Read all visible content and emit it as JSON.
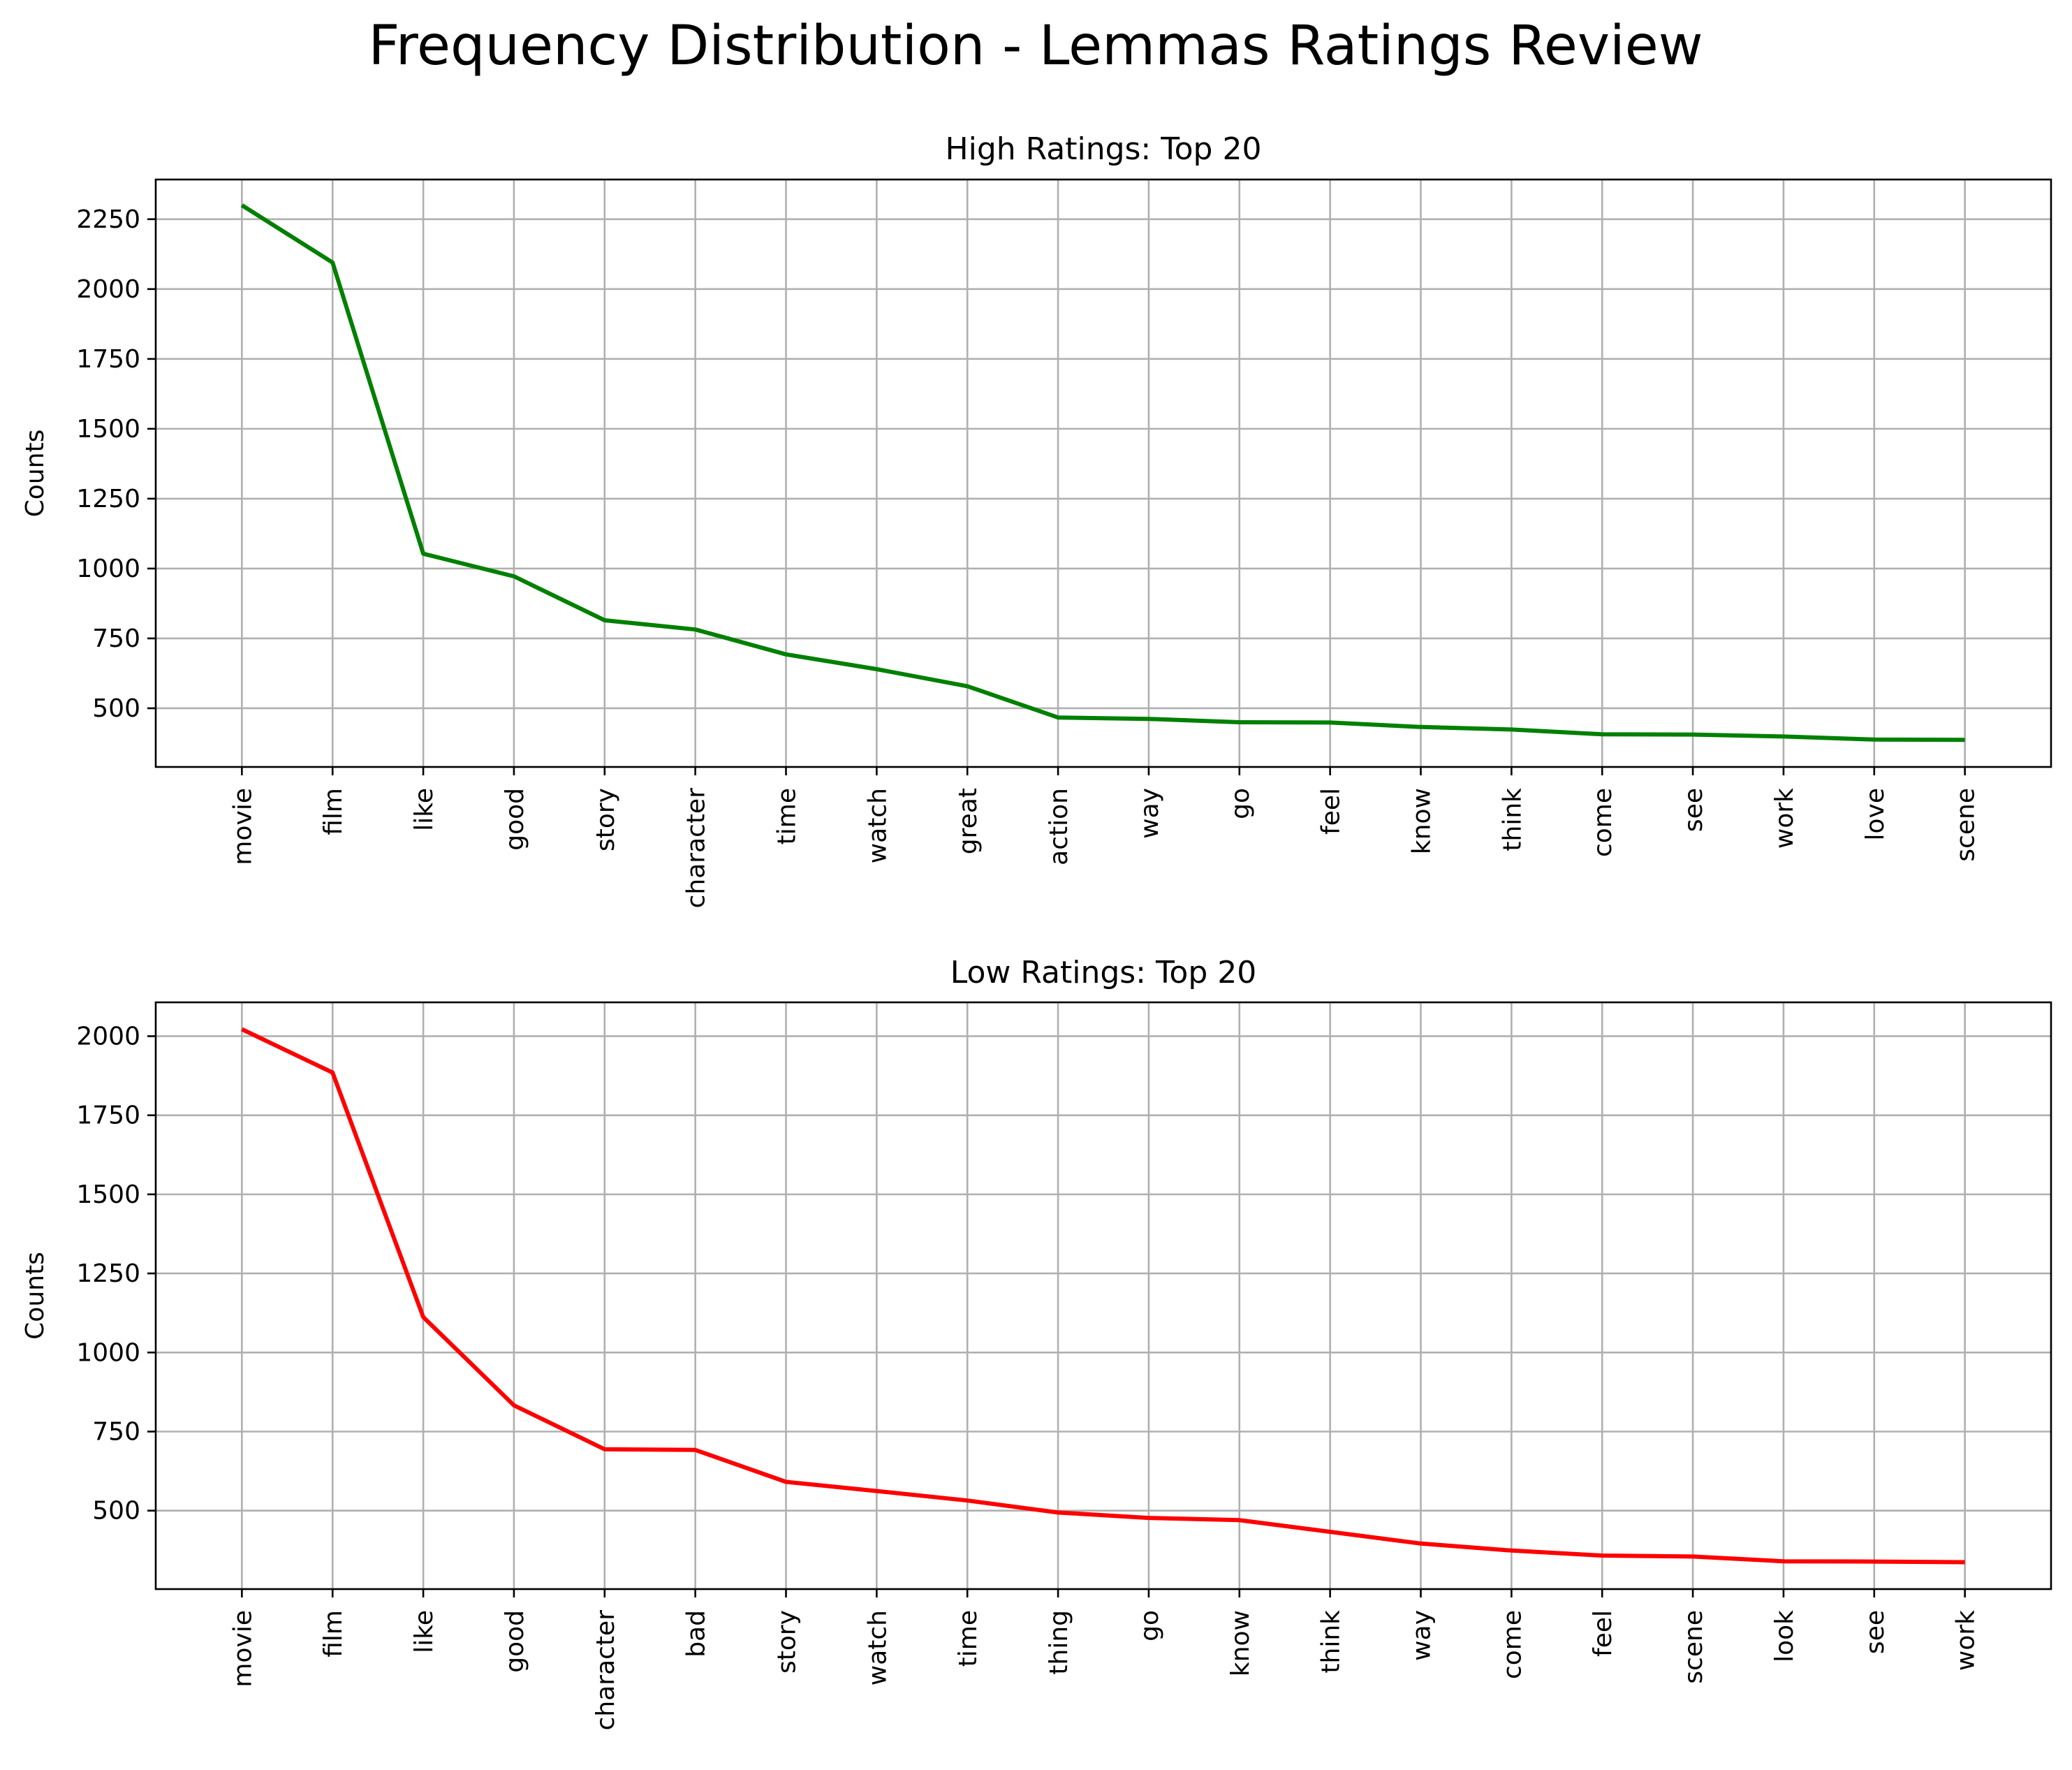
{
  "figure_title": "Frequency Distribution - Lemmas Ratings Review",
  "chart_data": [
    {
      "type": "line",
      "title": "High Ratings: Top 20",
      "xlabel": "",
      "ylabel": "Counts",
      "color": "#008000",
      "grid": true,
      "categories": [
        "movie",
        "film",
        "like",
        "good",
        "story",
        "character",
        "time",
        "watch",
        "great",
        "action",
        "way",
        "go",
        "feel",
        "know",
        "think",
        "come",
        "see",
        "work",
        "love",
        "scene"
      ],
      "values": [
        2300,
        2095,
        1053,
        972,
        815,
        782,
        693,
        640,
        579,
        467,
        462,
        450,
        449,
        433,
        424,
        407,
        406,
        399,
        388,
        387
      ],
      "ylim": [
        290,
        2392
      ],
      "yticks": [
        500,
        750,
        1000,
        1250,
        1500,
        1750,
        2000,
        2250
      ]
    },
    {
      "type": "line",
      "title": "Low Ratings: Top 20",
      "xlabel": "",
      "ylabel": "Counts",
      "color": "#ff0000",
      "grid": true,
      "categories": [
        "movie",
        "film",
        "like",
        "good",
        "character",
        "bad",
        "story",
        "watch",
        "time",
        "thing",
        "go",
        "know",
        "think",
        "way",
        "come",
        "feel",
        "scene",
        "look",
        "see",
        "work"
      ],
      "values": [
        2022,
        1885,
        1112,
        833,
        694,
        692,
        591,
        562,
        532,
        494,
        477,
        470,
        433,
        396,
        374,
        358,
        355,
        340,
        339,
        337
      ],
      "ylim": [
        252,
        2107
      ],
      "yticks": [
        500,
        750,
        1000,
        1250,
        1500,
        1750,
        2000
      ]
    }
  ]
}
